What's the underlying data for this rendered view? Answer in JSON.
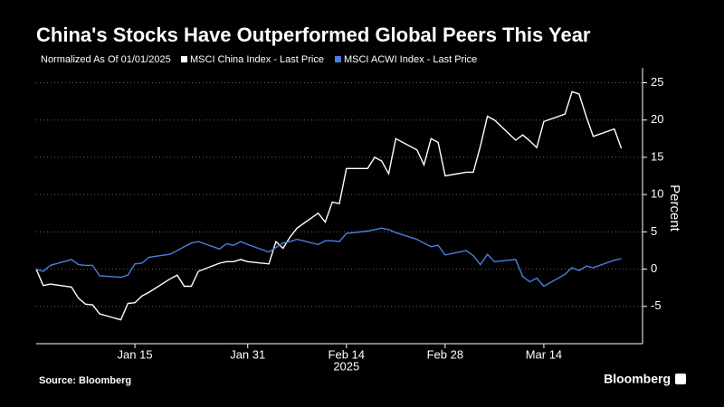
{
  "chart_data": {
    "type": "line",
    "title": "China's Stocks Have Outperformed Global Peers This Year",
    "subtitle": "Normalized As Of 01/01/2025",
    "x": [
      "2025-01-01",
      "2025-01-02",
      "2025-01-03",
      "2025-01-06",
      "2025-01-07",
      "2025-01-08",
      "2025-01-09",
      "2025-01-10",
      "2025-01-13",
      "2025-01-14",
      "2025-01-15",
      "2025-01-16",
      "2025-01-17",
      "2025-01-20",
      "2025-01-21",
      "2025-01-22",
      "2025-01-23",
      "2025-01-24",
      "2025-01-27",
      "2025-01-28",
      "2025-01-29",
      "2025-01-30",
      "2025-01-31",
      "2025-02-03",
      "2025-02-04",
      "2025-02-05",
      "2025-02-06",
      "2025-02-07",
      "2025-02-10",
      "2025-02-11",
      "2025-02-12",
      "2025-02-13",
      "2025-02-14",
      "2025-02-17",
      "2025-02-18",
      "2025-02-19",
      "2025-02-20",
      "2025-02-21",
      "2025-02-24",
      "2025-02-25",
      "2025-02-26",
      "2025-02-27",
      "2025-02-28",
      "2025-03-03",
      "2025-03-04",
      "2025-03-05",
      "2025-03-06",
      "2025-03-07",
      "2025-03-10",
      "2025-03-11",
      "2025-03-12",
      "2025-03-13",
      "2025-03-14",
      "2025-03-17",
      "2025-03-18",
      "2025-03-19",
      "2025-03-20",
      "2025-03-21",
      "2025-03-24",
      "2025-03-25"
    ],
    "series": [
      {
        "name": "MSCI China Index - Last Price",
        "color": "#ffffff",
        "values": [
          0,
          -2.2,
          -2.0,
          -2.4,
          -3.9,
          -4.7,
          -4.8,
          -6.0,
          -6.8,
          -4.6,
          -4.5,
          -3.6,
          -3.1,
          -1.3,
          -0.8,
          -2.3,
          -2.3,
          -0.3,
          0.8,
          1.0,
          1.0,
          1.3,
          1.0,
          0.7,
          3.7,
          2.8,
          4.3,
          5.5,
          7.5,
          6.3,
          9.0,
          8.8,
          13.5,
          13.5,
          15.0,
          14.5,
          12.8,
          17.5,
          16.0,
          14.0,
          17.5,
          17.0,
          12.5,
          13.0,
          13.0,
          16.5,
          20.5,
          20.0,
          17.3,
          18.0,
          17.2,
          16.3,
          19.8,
          20.8,
          23.8,
          23.5,
          20.5,
          17.8,
          18.8,
          16.2
        ]
      },
      {
        "name": "MSCI ACWI Index - Last Price",
        "color": "#4a7fe0",
        "values": [
          0,
          -0.3,
          0.5,
          1.3,
          0.6,
          0.5,
          0.5,
          -0.9,
          -1.1,
          -0.8,
          0.7,
          0.8,
          1.6,
          2.0,
          2.5,
          3.0,
          3.5,
          3.7,
          2.7,
          3.4,
          3.2,
          3.7,
          3.3,
          2.3,
          2.9,
          3.5,
          3.7,
          4.0,
          3.3,
          3.8,
          3.8,
          3.7,
          4.8,
          5.1,
          5.3,
          5.5,
          5.3,
          4.9,
          4.0,
          3.5,
          3.0,
          3.2,
          1.9,
          2.5,
          1.8,
          0.6,
          2.0,
          1.0,
          1.3,
          -1.0,
          -1.7,
          -1.2,
          -2.3,
          -0.7,
          0.2,
          -0.2,
          0.4,
          0.2,
          1.2,
          1.4
        ]
      }
    ],
    "xlim": [
      "2025-01-01",
      "2025-03-28"
    ],
    "xticks": [
      {
        "value": "2025-01-15",
        "label": "Jan 15"
      },
      {
        "value": "2025-01-31",
        "label": "Jan 31"
      },
      {
        "value": "2025-02-14",
        "label": "Feb 14"
      },
      {
        "value": "2025-02-28",
        "label": "Feb 28"
      },
      {
        "value": "2025-03-14",
        "label": "Mar 14"
      }
    ],
    "x_year": "2025",
    "ylim": [
      -10,
      27
    ],
    "yticks": [
      -5,
      0,
      5,
      10,
      15,
      20,
      25
    ],
    "ylabel": "Percent",
    "grid": true,
    "source": "Source: Bloomberg",
    "brand": "Bloomberg"
  }
}
